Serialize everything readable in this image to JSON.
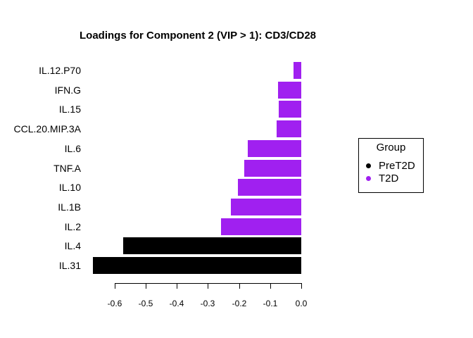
{
  "title": "Loadings for Component 2 (VIP > 1): CD3/CD28",
  "colors": {
    "background": "#ffffff",
    "axis": "#000000",
    "pret2d": "#000000",
    "t2d": "#a020f0"
  },
  "legend": {
    "title": "Group",
    "items": [
      {
        "label": "PreT2D",
        "color": "#000000"
      },
      {
        "label": "T2D",
        "color": "#a020f0"
      }
    ]
  },
  "chart_data": {
    "type": "bar",
    "orientation": "horizontal",
    "title": "Loadings for Component 2 (VIP > 1): CD3/CD28",
    "xlabel": "",
    "ylabel": "",
    "categories": [
      "IL.12.P70",
      "IFN.G",
      "IL.15",
      "CCL.20.MIP.3A",
      "IL.6",
      "TNF.A",
      "IL.10",
      "IL.1B",
      "IL.2",
      "IL.4",
      "IL.31"
    ],
    "values": [
      -0.025,
      -0.075,
      -0.072,
      -0.079,
      -0.172,
      -0.183,
      -0.204,
      -0.226,
      -0.258,
      -0.573,
      -0.67
    ],
    "groups": [
      "T2D",
      "T2D",
      "T2D",
      "T2D",
      "T2D",
      "T2D",
      "T2D",
      "T2D",
      "T2D",
      "PreT2D",
      "PreT2D"
    ],
    "series": [
      {
        "name": "T2D",
        "color": "#a020f0",
        "categories": [
          "IL.12.P70",
          "IFN.G",
          "IL.15",
          "CCL.20.MIP.3A",
          "IL.6",
          "TNF.A",
          "IL.10",
          "IL.1B",
          "IL.2"
        ],
        "values": [
          -0.025,
          -0.075,
          -0.072,
          -0.079,
          -0.172,
          -0.183,
          -0.204,
          -0.226,
          -0.258
        ]
      },
      {
        "name": "PreT2D",
        "color": "#000000",
        "categories": [
          "IL.4",
          "IL.31"
        ],
        "values": [
          -0.573,
          -0.67
        ]
      }
    ],
    "xlim": [
      -0.67,
      0.0
    ],
    "x_ticks": [
      -0.6,
      -0.5,
      -0.4,
      -0.3,
      -0.2,
      -0.1,
      0.0
    ],
    "x_tick_labels": [
      "-0.6",
      "-0.5",
      "-0.4",
      "-0.3",
      "-0.2",
      "-0.1",
      "0.0"
    ],
    "grid": false,
    "legend_position": "right-middle"
  }
}
